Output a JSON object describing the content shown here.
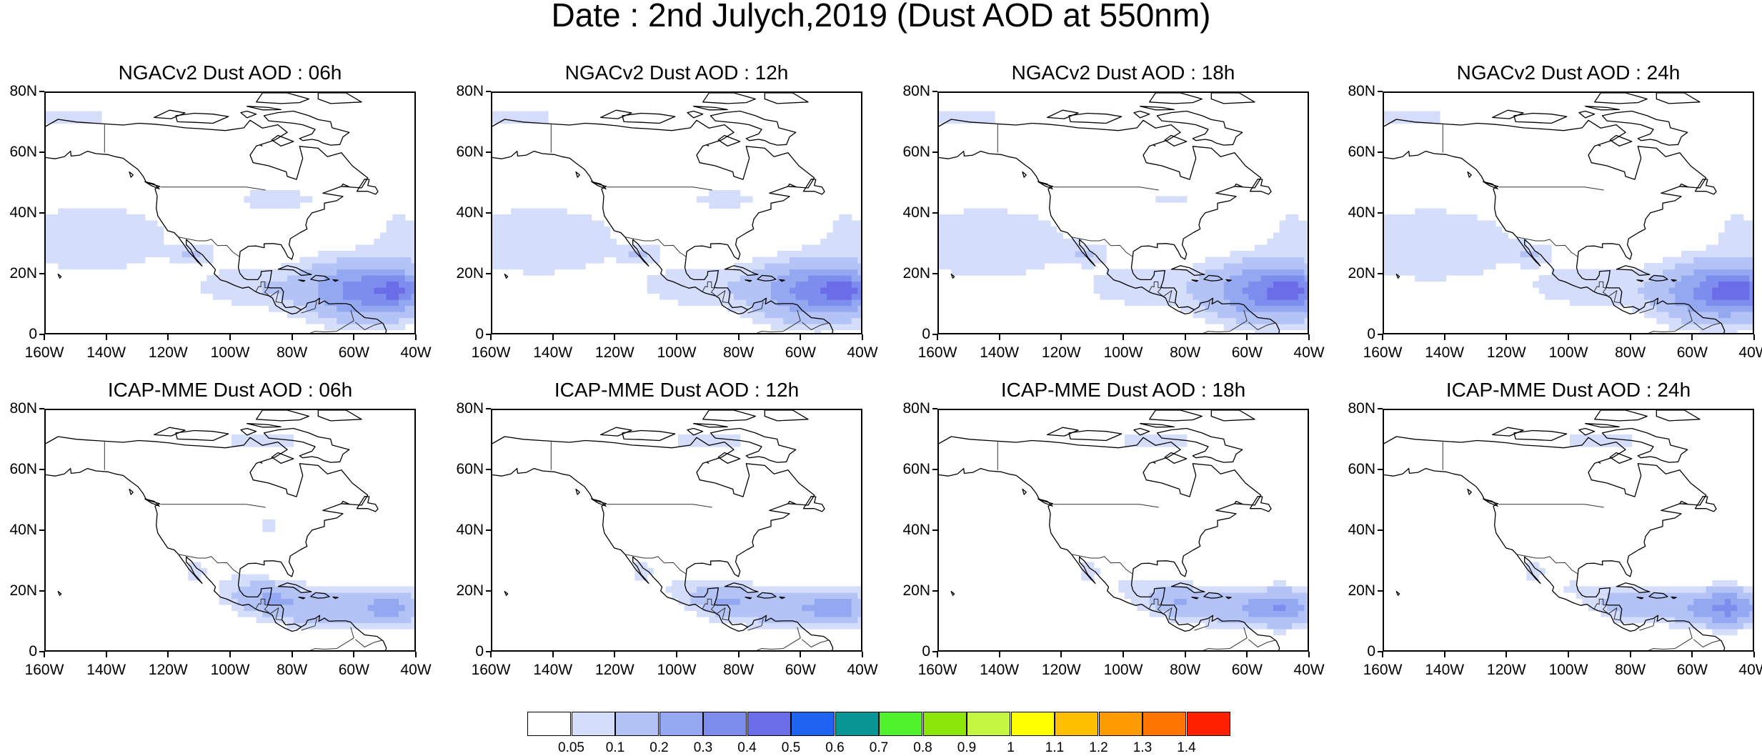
{
  "title": "Date : 2nd Julych,2019 (Dust AOD at 550nm)",
  "panels": [
    {
      "title": "NGACv2 Dust AOD : 06h",
      "model": "ngac",
      "hour": 6
    },
    {
      "title": "NGACv2 Dust AOD : 12h",
      "model": "ngac",
      "hour": 12
    },
    {
      "title": "NGACv2 Dust AOD : 18h",
      "model": "ngac",
      "hour": 18
    },
    {
      "title": "NGACv2 Dust AOD : 24h",
      "model": "ngac",
      "hour": 24
    },
    {
      "title": "ICAP-MME Dust AOD : 06h",
      "model": "icap",
      "hour": 6
    },
    {
      "title": "ICAP-MME Dust AOD : 12h",
      "model": "icap",
      "hour": 12
    },
    {
      "title": "ICAP-MME Dust AOD : 18h",
      "model": "icap",
      "hour": 18
    },
    {
      "title": "ICAP-MME Dust AOD : 24h",
      "model": "icap",
      "hour": 24
    }
  ],
  "axes": {
    "lat_labels": [
      "80N",
      "60N",
      "40N",
      "20N",
      "0"
    ],
    "lat_values": [
      80,
      60,
      40,
      20,
      0
    ],
    "lon_labels": [
      "160W",
      "140W",
      "120W",
      "100W",
      "80W",
      "60W",
      "40W"
    ],
    "lon_values": [
      -160,
      -140,
      -120,
      -100,
      -80,
      -60,
      -40
    ],
    "lat_range": [
      0,
      80
    ],
    "lon_range": [
      -160,
      -40
    ]
  },
  "colorbar": {
    "labels": [
      "0.05",
      "0.1",
      "0.2",
      "0.3",
      "0.4",
      "0.5",
      "0.6",
      "0.7",
      "0.8",
      "0.9",
      "1",
      "1.1",
      "1.2",
      "1.3",
      "1.4"
    ],
    "colors": [
      "#ffffff",
      "#d4ddfa",
      "#b4c3f5",
      "#93a8f0",
      "#7d8ded",
      "#6a6ce8",
      "#1e64f0",
      "#0a9696",
      "#50f02d",
      "#8ce60a",
      "#c3f541",
      "#ffff00",
      "#ffbe00",
      "#ff9b00",
      "#ff7300",
      "#ff2000"
    ]
  }
}
